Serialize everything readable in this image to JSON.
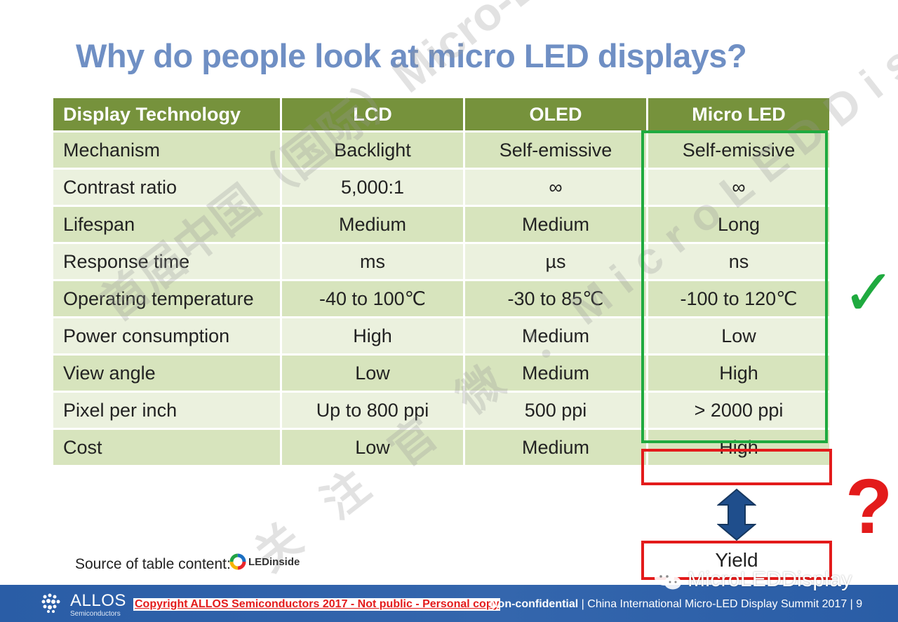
{
  "slide": {
    "title": "Why do people look at micro LED displays?"
  },
  "table": {
    "headers": [
      "Display Technology",
      "LCD",
      "OLED",
      "Micro LED"
    ],
    "rows": [
      [
        "Mechanism",
        "Backlight",
        "Self-emissive",
        "Self-emissive"
      ],
      [
        "Contrast ratio",
        "5,000:1",
        "∞",
        "∞"
      ],
      [
        "Lifespan",
        "Medium",
        "Medium",
        "Long"
      ],
      [
        "Response time",
        "ms",
        "µs",
        "ns"
      ],
      [
        "Operating temperature",
        "-40 to 100℃",
        "-30 to 85℃",
        "-100 to 120℃"
      ],
      [
        "Power consumption",
        "High",
        "Medium",
        "Low"
      ],
      [
        "View angle",
        "Low",
        "Medium",
        "High"
      ],
      [
        "Pixel per inch",
        "Up to 800 ppi",
        "500 ppi",
        "> 2000 ppi"
      ],
      [
        "Cost",
        "Low",
        "Medium",
        "High"
      ]
    ]
  },
  "annotations": {
    "check_mark": "✓",
    "question_mark": "?",
    "yield_label": "Yield"
  },
  "source": {
    "label": "Source of  table content:",
    "logo_text": "LEDinside"
  },
  "footer": {
    "company": "ALLOS",
    "company_sub": "Semiconductors",
    "copyright": "Copyright ALLOS Semiconductors 2017 - Not public - Personal copy",
    "confidential": "Non-confidential",
    "event": "China International Micro-LED Display Summit  2017",
    "page": "9"
  },
  "watermarks": {
    "diagonal_1": "首届中国（国际）Micro-LED显示高峰论坛",
    "diagonal_2": "关 注 官 微 ：MicroLEDDisplay",
    "wechat": "MicroLEDDisplay"
  },
  "colors": {
    "title": "#6f8fc4",
    "header": "#76923c",
    "row_dark": "#d7e4bd",
    "row_light": "#ebf1de",
    "highlight_green": "#1faa3f",
    "highlight_red": "#e31b1b",
    "footer": "#2b5ea7"
  }
}
